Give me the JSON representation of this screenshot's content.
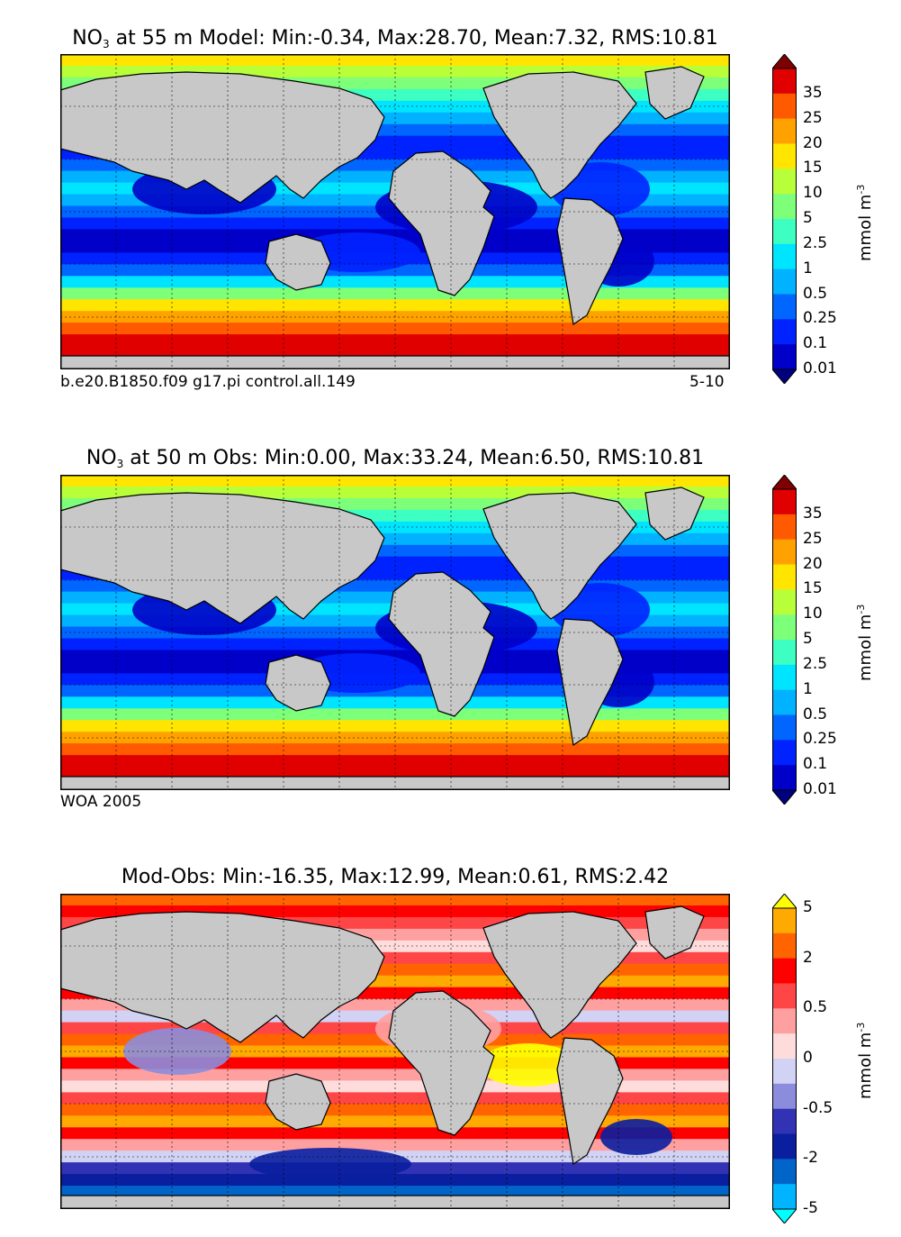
{
  "panels": [
    {
      "id": "model",
      "title_prefix": "NO",
      "title_sub": "3",
      "title_rest": " at 55 m Model: Min:-0.34, Max:28.70, Mean:7.32, RMS:10.81",
      "footer_left": "b.e20.B1850.f09 g17.pi control.all.149",
      "footer_right": "5-10",
      "unit_main": "mmol m",
      "unit_sup": "-3",
      "levels": [
        "0.01",
        "0.1",
        "0.25",
        "0.5",
        "1",
        "2.5",
        "5",
        "10",
        "15",
        "20",
        "25",
        "35"
      ],
      "colors": [
        "#00007f",
        "#0000c8",
        "#0022ff",
        "#0066ff",
        "#00b2ff",
        "#00e5ff",
        "#3dffc2",
        "#7dff7a",
        "#b8ff3a",
        "#ffe500",
        "#ffa200",
        "#ff5a00",
        "#e00000",
        "#7f0000"
      ]
    },
    {
      "id": "obs",
      "title_prefix": "NO",
      "title_sub": "3",
      "title_rest": " at 50 m Obs: Min:0.00, Max:33.24, Mean:6.50, RMS:10.81",
      "footer_left": "WOA 2005",
      "footer_right": "",
      "unit_main": "mmol m",
      "unit_sup": "-3",
      "levels": [
        "0.01",
        "0.1",
        "0.25",
        "0.5",
        "1",
        "2.5",
        "5",
        "10",
        "15",
        "20",
        "25",
        "35"
      ],
      "colors": [
        "#00007f",
        "#0000c8",
        "#0022ff",
        "#0066ff",
        "#00b2ff",
        "#00e5ff",
        "#3dffc2",
        "#7dff7a",
        "#b8ff3a",
        "#ffe500",
        "#ffa200",
        "#ff5a00",
        "#e00000",
        "#7f0000"
      ]
    },
    {
      "id": "diff",
      "title_prefix": "",
      "title_sub": "",
      "title_rest": "Mod-Obs: Min:-16.35, Max:12.99, Mean:0.61, RMS:2.42",
      "footer_left": "",
      "footer_right": "",
      "unit_main": "mmol m",
      "unit_sup": "-3",
      "levels": [
        "-5",
        "-2",
        "-0.5",
        "0",
        "0.5",
        "2",
        "5"
      ],
      "colors": [
        "#00ffff",
        "#00b4ff",
        "#0064c8",
        "#0a1ea0",
        "#3232b4",
        "#8c8cdc",
        "#d2d2f5",
        "#ffdcdc",
        "#ffa0a0",
        "#ff4646",
        "#ff0000",
        "#ff6400",
        "#ffaa00",
        "#ffff00"
      ]
    }
  ],
  "chart_data": [
    {
      "type": "heatmap",
      "title": "NO3 at 55 m Model: Min:-0.34, Max:28.70, Mean:7.32, RMS:10.81",
      "variable": "NO3",
      "depth_m": 55,
      "stats": {
        "min": -0.34,
        "max": 28.7,
        "mean": 7.32,
        "rms": 10.81
      },
      "colorbar_ticks": [
        0.01,
        0.1,
        0.25,
        0.5,
        1,
        2.5,
        5,
        10,
        15,
        20,
        25,
        35
      ],
      "units": "mmol m^-3",
      "source": "b.e20.B1850.f09 g17.pi control.all.149",
      "years": "5-10"
    },
    {
      "type": "heatmap",
      "title": "NO3 at 50 m Obs: Min:0.00, Max:33.24, Mean:6.50, RMS:10.81",
      "variable": "NO3",
      "depth_m": 50,
      "stats": {
        "min": 0.0,
        "max": 33.24,
        "mean": 6.5,
        "rms": 10.81
      },
      "colorbar_ticks": [
        0.01,
        0.1,
        0.25,
        0.5,
        1,
        2.5,
        5,
        10,
        15,
        20,
        25,
        35
      ],
      "units": "mmol m^-3",
      "source": "WOA 2005"
    },
    {
      "type": "heatmap",
      "title": "Mod-Obs: Min:-16.35, Max:12.99, Mean:0.61, RMS:2.42",
      "stats": {
        "min": -16.35,
        "max": 12.99,
        "mean": 0.61,
        "rms": 2.42
      },
      "colorbar_ticks": [
        -5,
        -2,
        -0.5,
        0,
        0.5,
        2,
        5
      ],
      "units": "mmol m^-3"
    }
  ]
}
